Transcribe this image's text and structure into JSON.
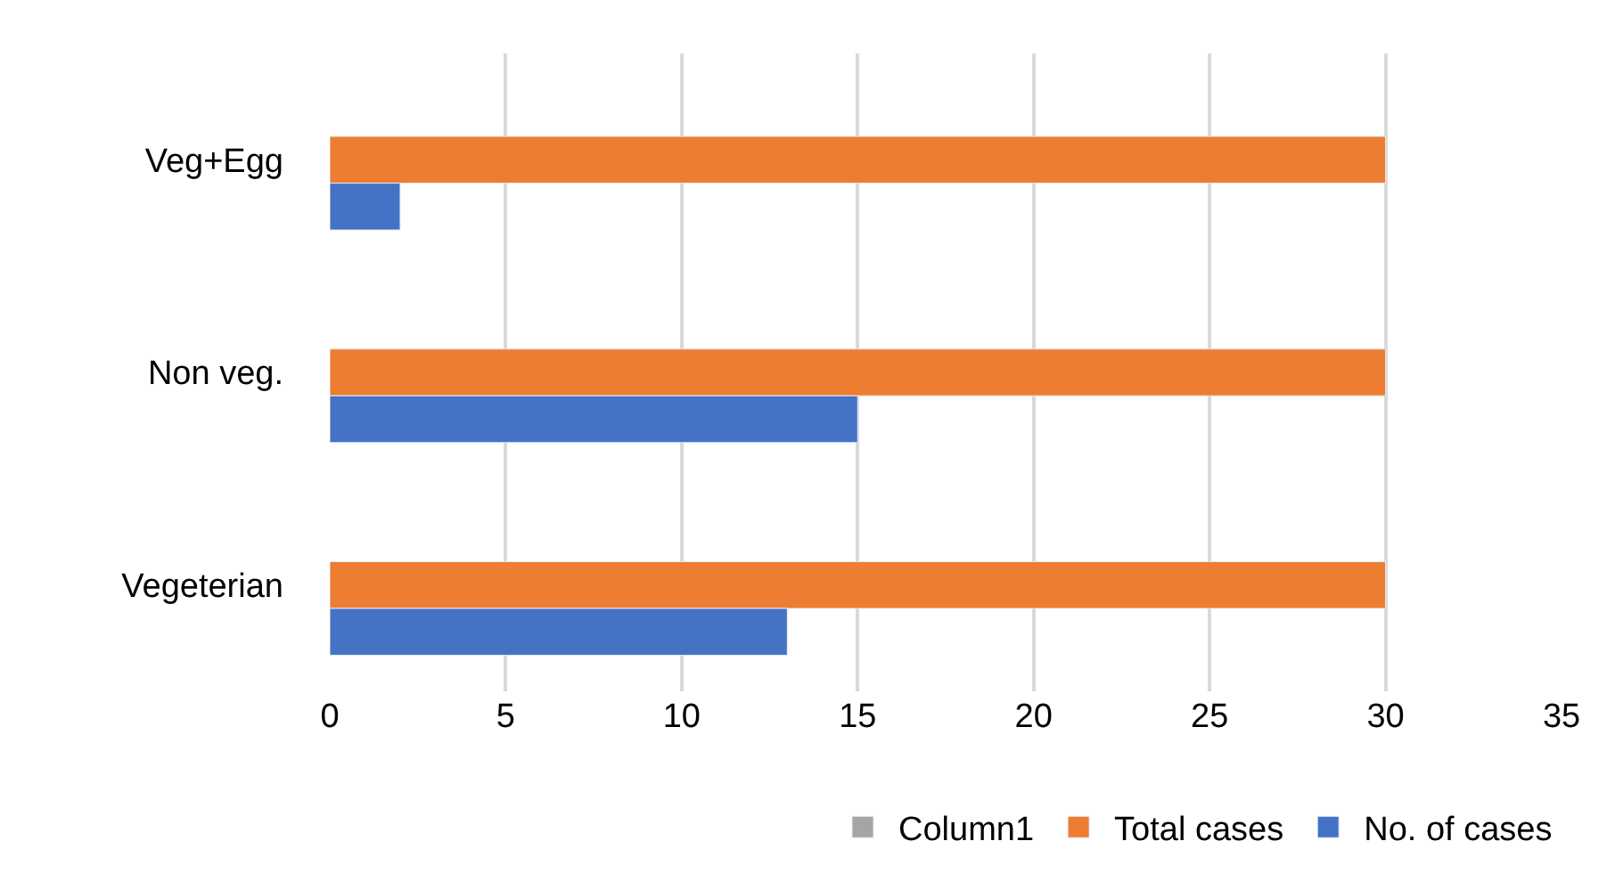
{
  "chart_data": {
    "type": "bar",
    "orientation": "horizontal",
    "categories": [
      "Veg+Egg",
      "Non veg.",
      "Vegeterian"
    ],
    "series": [
      {
        "name": "Column1",
        "color": "#a5a5a5",
        "values": [
          null,
          null,
          null
        ]
      },
      {
        "name": "Total cases",
        "color": "#ed7d31",
        "values": [
          30,
          30,
          30
        ]
      },
      {
        "name": "No. of cases",
        "color": "#4472c4",
        "values": [
          2,
          15,
          13
        ]
      }
    ],
    "xlim": [
      0,
      35
    ],
    "xticks": [
      0,
      5,
      10,
      15,
      20,
      25,
      30,
      35
    ],
    "grid": "x",
    "legend": "bottom"
  }
}
